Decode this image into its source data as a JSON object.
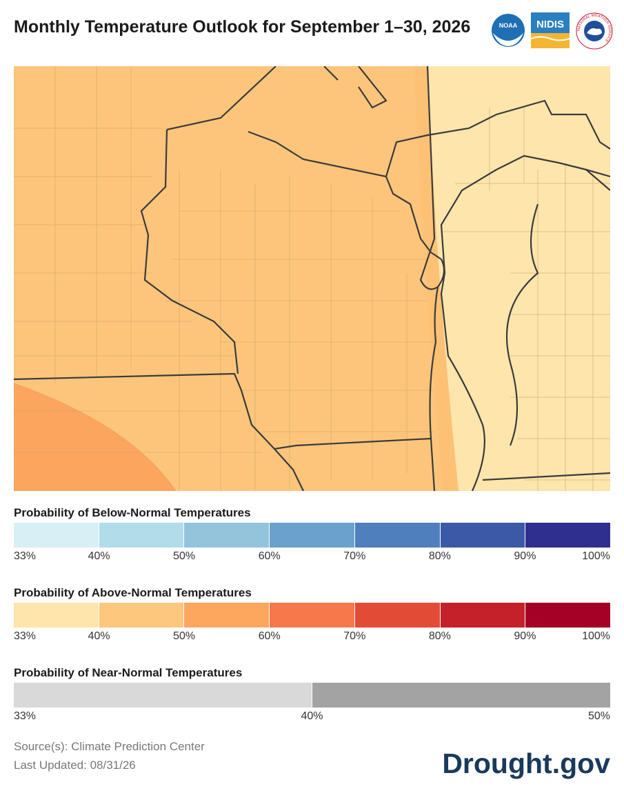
{
  "header": {
    "title": "Monthly Temperature Outlook for September 1–30, 2026",
    "logos": [
      "NOAA",
      "NIDIS",
      "NATIONAL WEATHER SERVICE"
    ]
  },
  "legends": [
    {
      "title": "Probability of Below-Normal Temperatures",
      "colors": [
        "#d9eff6",
        "#b3dceb",
        "#93c4dc",
        "#6ba1cd",
        "#4f7fbd",
        "#3b59a7",
        "#2f2f8f"
      ],
      "labels": [
        "33%",
        "40%",
        "50%",
        "60%",
        "70%",
        "80%",
        "90%",
        "100%"
      ]
    },
    {
      "title": "Probability of Above-Normal Temperatures",
      "colors": [
        "#fde5ac",
        "#fdc77e",
        "#fca65e",
        "#f7784b",
        "#e24b36",
        "#c4212a",
        "#a50026"
      ],
      "labels": [
        "33%",
        "40%",
        "50%",
        "60%",
        "70%",
        "80%",
        "90%",
        "100%"
      ]
    },
    {
      "title": "Probability of Near-Normal Temperatures",
      "colors": [
        "#d9d9d9",
        "#a3a3a3"
      ],
      "labels": [
        "33%",
        "40%",
        "50%"
      ]
    }
  ],
  "footer": {
    "source": "Source(s): Climate Prediction Center",
    "updated": "Last Updated: 08/31/26",
    "brand": "Drought.gov"
  }
}
